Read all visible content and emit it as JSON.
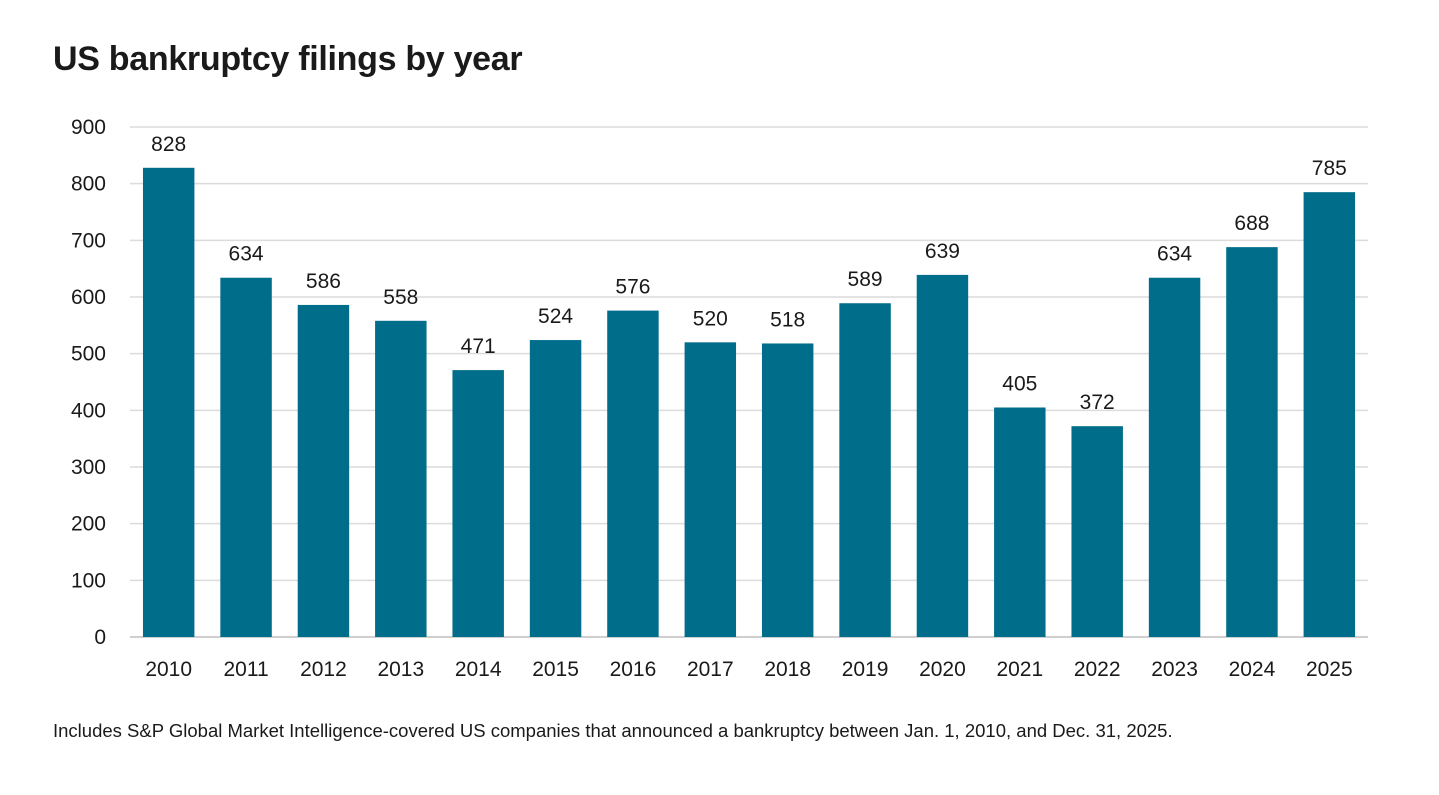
{
  "title": "US bankruptcy filings by year",
  "footnote": "Includes S&P Global Market Intelligence-covered US companies that announced a bankruptcy between Jan. 1, 2010, and Dec. 31, 2025.",
  "colors": {
    "bar": "#006D8A",
    "grid": "#dcdcdc",
    "text": "#1a1a1a"
  },
  "chart_data": {
    "type": "bar",
    "title": "US bankruptcy filings by year",
    "xlabel": "",
    "ylabel": "",
    "categories": [
      "2010",
      "2011",
      "2012",
      "2013",
      "2014",
      "2015",
      "2016",
      "2017",
      "2018",
      "2019",
      "2020",
      "2021",
      "2022",
      "2023",
      "2024",
      "2025"
    ],
    "values": [
      828,
      634,
      586,
      558,
      471,
      524,
      576,
      520,
      518,
      589,
      639,
      405,
      372,
      634,
      688,
      785
    ],
    "ylim": [
      0,
      900
    ],
    "yticks": [
      0,
      100,
      200,
      300,
      400,
      500,
      600,
      700,
      800,
      900
    ],
    "grid": true,
    "data_labels": true
  }
}
